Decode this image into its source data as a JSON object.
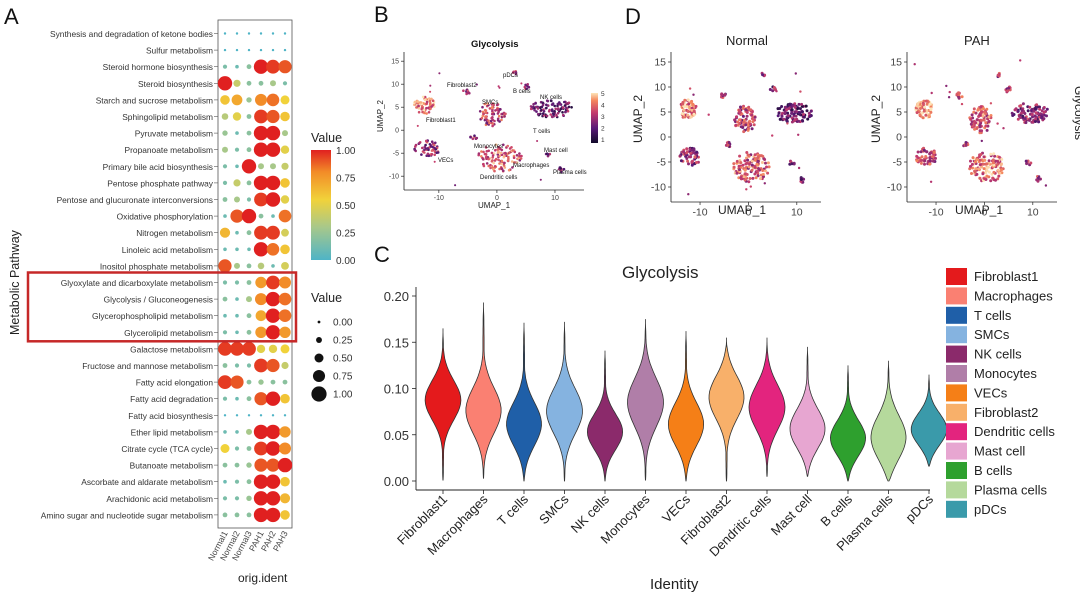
{
  "panels": {
    "A": {
      "letter": "A",
      "ylabel": "Metabolic Pathway",
      "xlabel": "orig.ident",
      "columns": [
        "Normal1",
        "Normal2",
        "Normal3",
        "PAH1",
        "PAH2",
        "PAH3"
      ],
      "pathways": [
        "Synthesis and degradation of ketone bodies",
        "Sulfur metabolism",
        "Steroid hormone biosynthesis",
        "Steroid biosynthesis",
        "Starch and sucrose metabolism",
        "Sphingolipid metabolism",
        "Pyruvate metabolism",
        "Propanoate metabolism",
        "Primary bile acid biosynthesis",
        "Pentose phosphate pathway",
        "Pentose and glucuronate interconversions",
        "Oxidative phosphorylation",
        "Nitrogen metabolism",
        "Linoleic acid metabolism",
        "Inositol phosphate metabolism",
        "Glyoxylate and dicarboxylate metabolism",
        "Glycolysis / Gluconeogenesis",
        "Glycerophospholipid metabolism",
        "Glycerolipid metabolism",
        "Galactose metabolism",
        "Fructose and mannose metabolism",
        "Fatty acid elongation",
        "Fatty acid degradation",
        "Fatty acid biosynthesis",
        "Ether lipid metabolism",
        "Citrate cycle (TCA cycle)",
        "Butanoate metabolism",
        "Ascorbate and aldarate metabolism",
        "Arachidonic acid metabolism",
        "Amino sugar and nucleotide sugar metabolism"
      ],
      "dot_values": [
        [
          0,
          0,
          0,
          0,
          0,
          0
        ],
        [
          0,
          0,
          0,
          0,
          0,
          0
        ],
        [
          0.15,
          0.1,
          0.2,
          1,
          0.95,
          0.9
        ],
        [
          1,
          0.4,
          0.2,
          0.2,
          0.3,
          0.15
        ],
        [
          0.6,
          0.7,
          0.25,
          0.8,
          0.85,
          0.55
        ],
        [
          0.35,
          0.5,
          0.2,
          0.95,
          0.9,
          0.6
        ],
        [
          0.25,
          0.1,
          0.2,
          1,
          1,
          0.3
        ],
        [
          0.3,
          0.15,
          0.2,
          1,
          1,
          0.5
        ],
        [
          0.15,
          0.1,
          1,
          0.3,
          0.3,
          0.4
        ],
        [
          0.15,
          0.4,
          0.2,
          1,
          1,
          0.6
        ],
        [
          0.2,
          0.3,
          0.15,
          0.95,
          1,
          0.5
        ],
        [
          0.1,
          0.9,
          1,
          0.2,
          0.1,
          0.85
        ],
        [
          0.65,
          0.1,
          0.2,
          0.95,
          0.95,
          0.45
        ],
        [
          0.1,
          0.1,
          0.1,
          1,
          0.85,
          0.6
        ],
        [
          0.9,
          0.3,
          0.2,
          0.35,
          0.1,
          0.45
        ],
        [
          0.15,
          0.15,
          0.2,
          0.75,
          0.95,
          0.8
        ],
        [
          0.2,
          0.1,
          0.3,
          0.8,
          1,
          0.85
        ],
        [
          0.1,
          0.1,
          0.2,
          0.7,
          1,
          0.85
        ],
        [
          0.15,
          0.1,
          0.2,
          0.75,
          1,
          0.75
        ],
        [
          0.95,
          0.95,
          0.95,
          0.5,
          0.5,
          0.55
        ],
        [
          0.2,
          0.15,
          0.15,
          0.95,
          0.9,
          0.4
        ],
        [
          0.95,
          0.9,
          0.2,
          0.25,
          0.2,
          0.2
        ],
        [
          0.15,
          0.1,
          0.2,
          0.9,
          1,
          0.6
        ],
        [
          0,
          0,
          0,
          0,
          0,
          0
        ],
        [
          0.1,
          0.1,
          0.3,
          1,
          1,
          0.75
        ],
        [
          0.55,
          0.15,
          0.2,
          0.95,
          1,
          0.8
        ],
        [
          0.2,
          0.2,
          0.25,
          0.9,
          0.9,
          1
        ],
        [
          0.1,
          0.15,
          0.2,
          1,
          1,
          0.6
        ],
        [
          0.15,
          0.15,
          0.25,
          1,
          1,
          0.65
        ],
        [
          0.2,
          0.2,
          0.2,
          1,
          1,
          0.6
        ]
      ],
      "legend_value": {
        "title": "Value",
        "ticks": [
          "1.00",
          "0.75",
          "0.50",
          "0.25",
          "0.00"
        ]
      },
      "legend_size": {
        "title": "Value",
        "ticks": [
          "0.00",
          "0.25",
          "0.50",
          "0.75",
          "1.00"
        ]
      },
      "highlight": {
        "from": 15,
        "to": 18,
        "color": "#c62828"
      }
    },
    "B": {
      "letter": "B",
      "title": "Glycolysis",
      "xlabel": "UMAP_1",
      "ylabel": "UMAP_2",
      "xticks": [
        "-10",
        "0",
        "10"
      ],
      "yticks": [
        "15",
        "10",
        "5",
        "0",
        "-5",
        "-10"
      ],
      "colorbar_ticks": [
        "5",
        "4",
        "3",
        "2",
        "1"
      ],
      "clusters": [
        "Fibroblast1",
        "Fibroblast2",
        "pDCs",
        "B cells",
        "SMCs",
        "NK cells",
        "T cells",
        "VECs",
        "Monocytes",
        "Mast cell",
        "Dendritic cells",
        "Macrophages",
        "Plasma cells"
      ]
    },
    "C": {
      "letter": "C",
      "chart_data": {
        "type": "violin",
        "title": "Glycolysis",
        "xlabel": "Identity",
        "ylabel": "",
        "ylim": [
          0.0,
          0.2
        ],
        "yticks": [
          "0.00",
          "0.05",
          "0.10",
          "0.15",
          "0.20"
        ],
        "categories": [
          "Fibroblast1",
          "Macrophages",
          "T cells",
          "SMCs",
          "NK cells",
          "Monocytes",
          "VECs",
          "Fibroblast2",
          "Dendritic cells",
          "Mast cell",
          "B cells",
          "Plasma cells",
          "pDCs"
        ],
        "colors": [
          "#e41a1c",
          "#fa8072",
          "#1f5fa8",
          "#85b3e0",
          "#8b2a6b",
          "#b07ea8",
          "#f57f17",
          "#f8b06a",
          "#e3247e",
          "#e7a6d1",
          "#2ea02e",
          "#b5d99c",
          "#3a9aaa"
        ],
        "series": [
          {
            "name": "Fibroblast1",
            "min": 0.001,
            "max": 0.165,
            "mode": 0.088,
            "spread": 0.022
          },
          {
            "name": "Macrophages",
            "min": 0.003,
            "max": 0.193,
            "mode": 0.075,
            "spread": 0.025
          },
          {
            "name": "T cells",
            "min": 0.0,
            "max": 0.171,
            "mode": 0.06,
            "spread": 0.024
          },
          {
            "name": "SMCs",
            "min": 0.0,
            "max": 0.172,
            "mode": 0.075,
            "spread": 0.025
          },
          {
            "name": "NK cells",
            "min": 0.0,
            "max": 0.141,
            "mode": 0.052,
            "spread": 0.02
          },
          {
            "name": "Monocytes",
            "min": 0.001,
            "max": 0.175,
            "mode": 0.085,
            "spread": 0.027
          },
          {
            "name": "VECs",
            "min": 0.0,
            "max": 0.162,
            "mode": 0.06,
            "spread": 0.024
          },
          {
            "name": "Fibroblast2",
            "min": 0.0,
            "max": 0.155,
            "mode": 0.092,
            "spread": 0.024
          },
          {
            "name": "Dendritic cells",
            "min": 0.005,
            "max": 0.155,
            "mode": 0.08,
            "spread": 0.025
          },
          {
            "name": "Mast cell",
            "min": 0.005,
            "max": 0.145,
            "mode": 0.055,
            "spread": 0.022
          },
          {
            "name": "B cells",
            "min": 0.0,
            "max": 0.125,
            "mode": 0.045,
            "spread": 0.02
          },
          {
            "name": "Plasma cells",
            "min": 0.0,
            "max": 0.13,
            "mode": 0.045,
            "spread": 0.025
          },
          {
            "name": "pDCs",
            "min": 0.016,
            "max": 0.115,
            "mode": 0.055,
            "spread": 0.018
          }
        ]
      }
    },
    "D": {
      "letter": "D",
      "titles": [
        "Normal",
        "PAH"
      ],
      "xlabel": "UMAP_1",
      "ylabel": "UMAP_2",
      "side_label": "Glycolysis",
      "xticks": [
        "-10",
        "0",
        "10"
      ],
      "yticks": [
        "15",
        "10",
        "5",
        "0",
        "-5",
        "-10"
      ]
    }
  }
}
